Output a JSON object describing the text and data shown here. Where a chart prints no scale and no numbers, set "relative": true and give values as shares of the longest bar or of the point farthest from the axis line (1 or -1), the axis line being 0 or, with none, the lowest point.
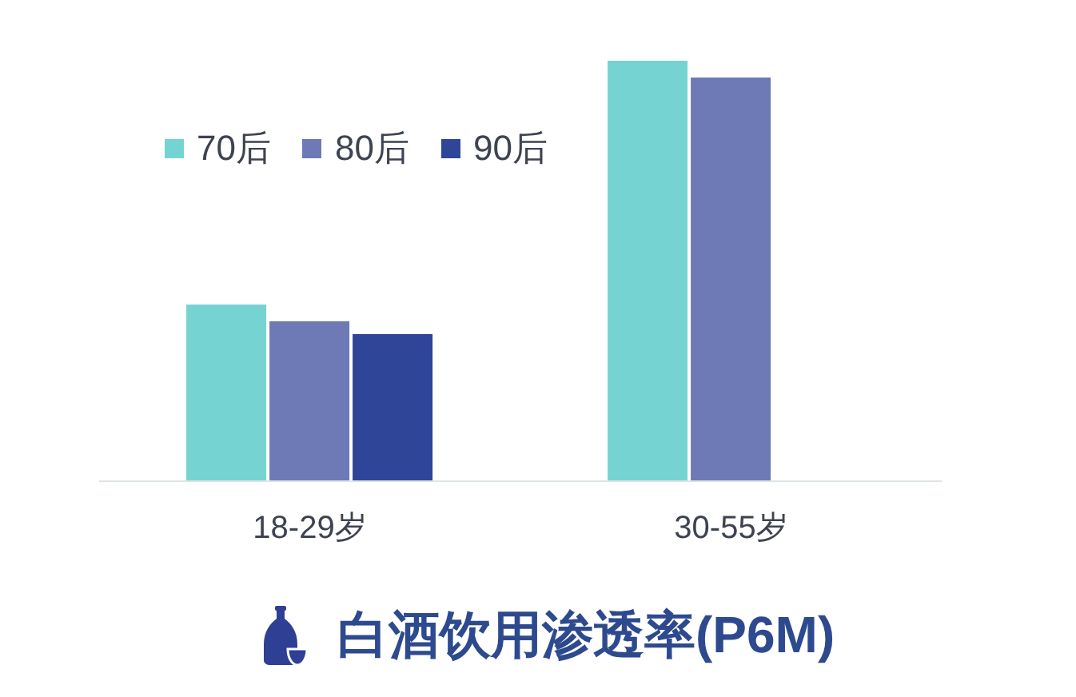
{
  "chart_data": {
    "type": "bar",
    "title": "白酒饮用渗透率(P6M)",
    "categories": [
      "18-29岁",
      "30-55岁"
    ],
    "relative": true,
    "series": [
      {
        "name": "70后",
        "color": "#75d4d2",
        "values": [
          0.42,
          1
        ]
      },
      {
        "name": "80后",
        "color": "#6e7ab5",
        "values": [
          0.38,
          0.96
        ]
      },
      {
        "name": "90后",
        "color": "#2f4598",
        "values": [
          0.35,
          null
        ]
      }
    ],
    "legend": "top left"
  }
}
